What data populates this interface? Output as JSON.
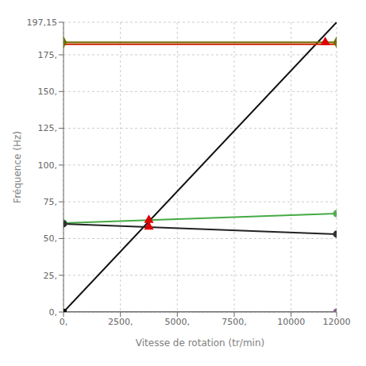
{
  "chart_data": {
    "type": "line",
    "xlabel": "Vitesse de rotation (tr/min)",
    "ylabel": "Fréquence (Hz)",
    "xlim": [
      0,
      12000
    ],
    "ylim": [
      0,
      197.15
    ],
    "xticks": [
      {
        "value": 0,
        "label": "0,"
      },
      {
        "value": 2500,
        "label": "2500,"
      },
      {
        "value": 5000,
        "label": "5000,"
      },
      {
        "value": 7500,
        "label": "7500,"
      },
      10000,
      12000
    ],
    "yticks": [
      {
        "value": 0,
        "label": "0,"
      },
      {
        "value": 25,
        "label": "25,"
      },
      {
        "value": 50,
        "label": "50,"
      },
      {
        "value": 75,
        "label": "75,"
      },
      {
        "value": 100,
        "label": "100,"
      },
      {
        "value": 125,
        "label": "125,"
      },
      {
        "value": 150,
        "label": "150,"
      },
      {
        "value": 175,
        "label": "175,"
      },
      {
        "value": 197.15,
        "label": "197,15"
      }
    ],
    "grid": true,
    "series": [
      {
        "type": "line",
        "color": "#111111",
        "x": [
          0,
          12000
        ],
        "values": [
          0,
          197.15
        ]
      },
      {
        "type": "line",
        "color": "#707000",
        "x": [
          0,
          12000
        ],
        "values": [
          183.5,
          183.5
        ]
      },
      {
        "type": "line",
        "color": "#cc2200",
        "x": [
          0,
          12000
        ],
        "values": [
          182.2,
          182.2
        ]
      },
      {
        "type": "line",
        "color": "#44aa44",
        "x": [
          0,
          12000
        ],
        "values": [
          60.5,
          67.0
        ]
      },
      {
        "type": "line",
        "color": "#222222",
        "x": [
          0,
          12000
        ],
        "values": [
          60.0,
          53.0
        ]
      },
      {
        "type": "line",
        "color": "#777777",
        "x": [
          0,
          12000
        ],
        "values": [
          0.0,
          0.0
        ]
      },
      {
        "type": "scatter",
        "marker": "triangle",
        "color": "#dd0000",
        "x": [
          3750,
          3750,
          11500
        ],
        "values": [
          62.5,
          58.0,
          183.5
        ]
      },
      {
        "type": "scatter",
        "marker": "diamond",
        "color": "#707000",
        "x": [
          0,
          12000
        ],
        "values": [
          183.5,
          183.5
        ]
      },
      {
        "type": "scatter",
        "marker": "circle",
        "color": "#55aa55",
        "x": [
          0,
          12000
        ],
        "values": [
          60.5,
          67.0
        ]
      },
      {
        "type": "scatter",
        "marker": "circle",
        "color": "#333333",
        "x": [
          0,
          12000
        ],
        "values": [
          60.0,
          53.0
        ]
      },
      {
        "type": "scatter",
        "marker": "square",
        "color": "#111111",
        "x": [
          0
        ],
        "values": [
          0
        ]
      },
      {
        "type": "scatter",
        "marker": "circle",
        "color": "#886688",
        "x": [
          12000
        ],
        "values": [
          0
        ]
      }
    ]
  }
}
